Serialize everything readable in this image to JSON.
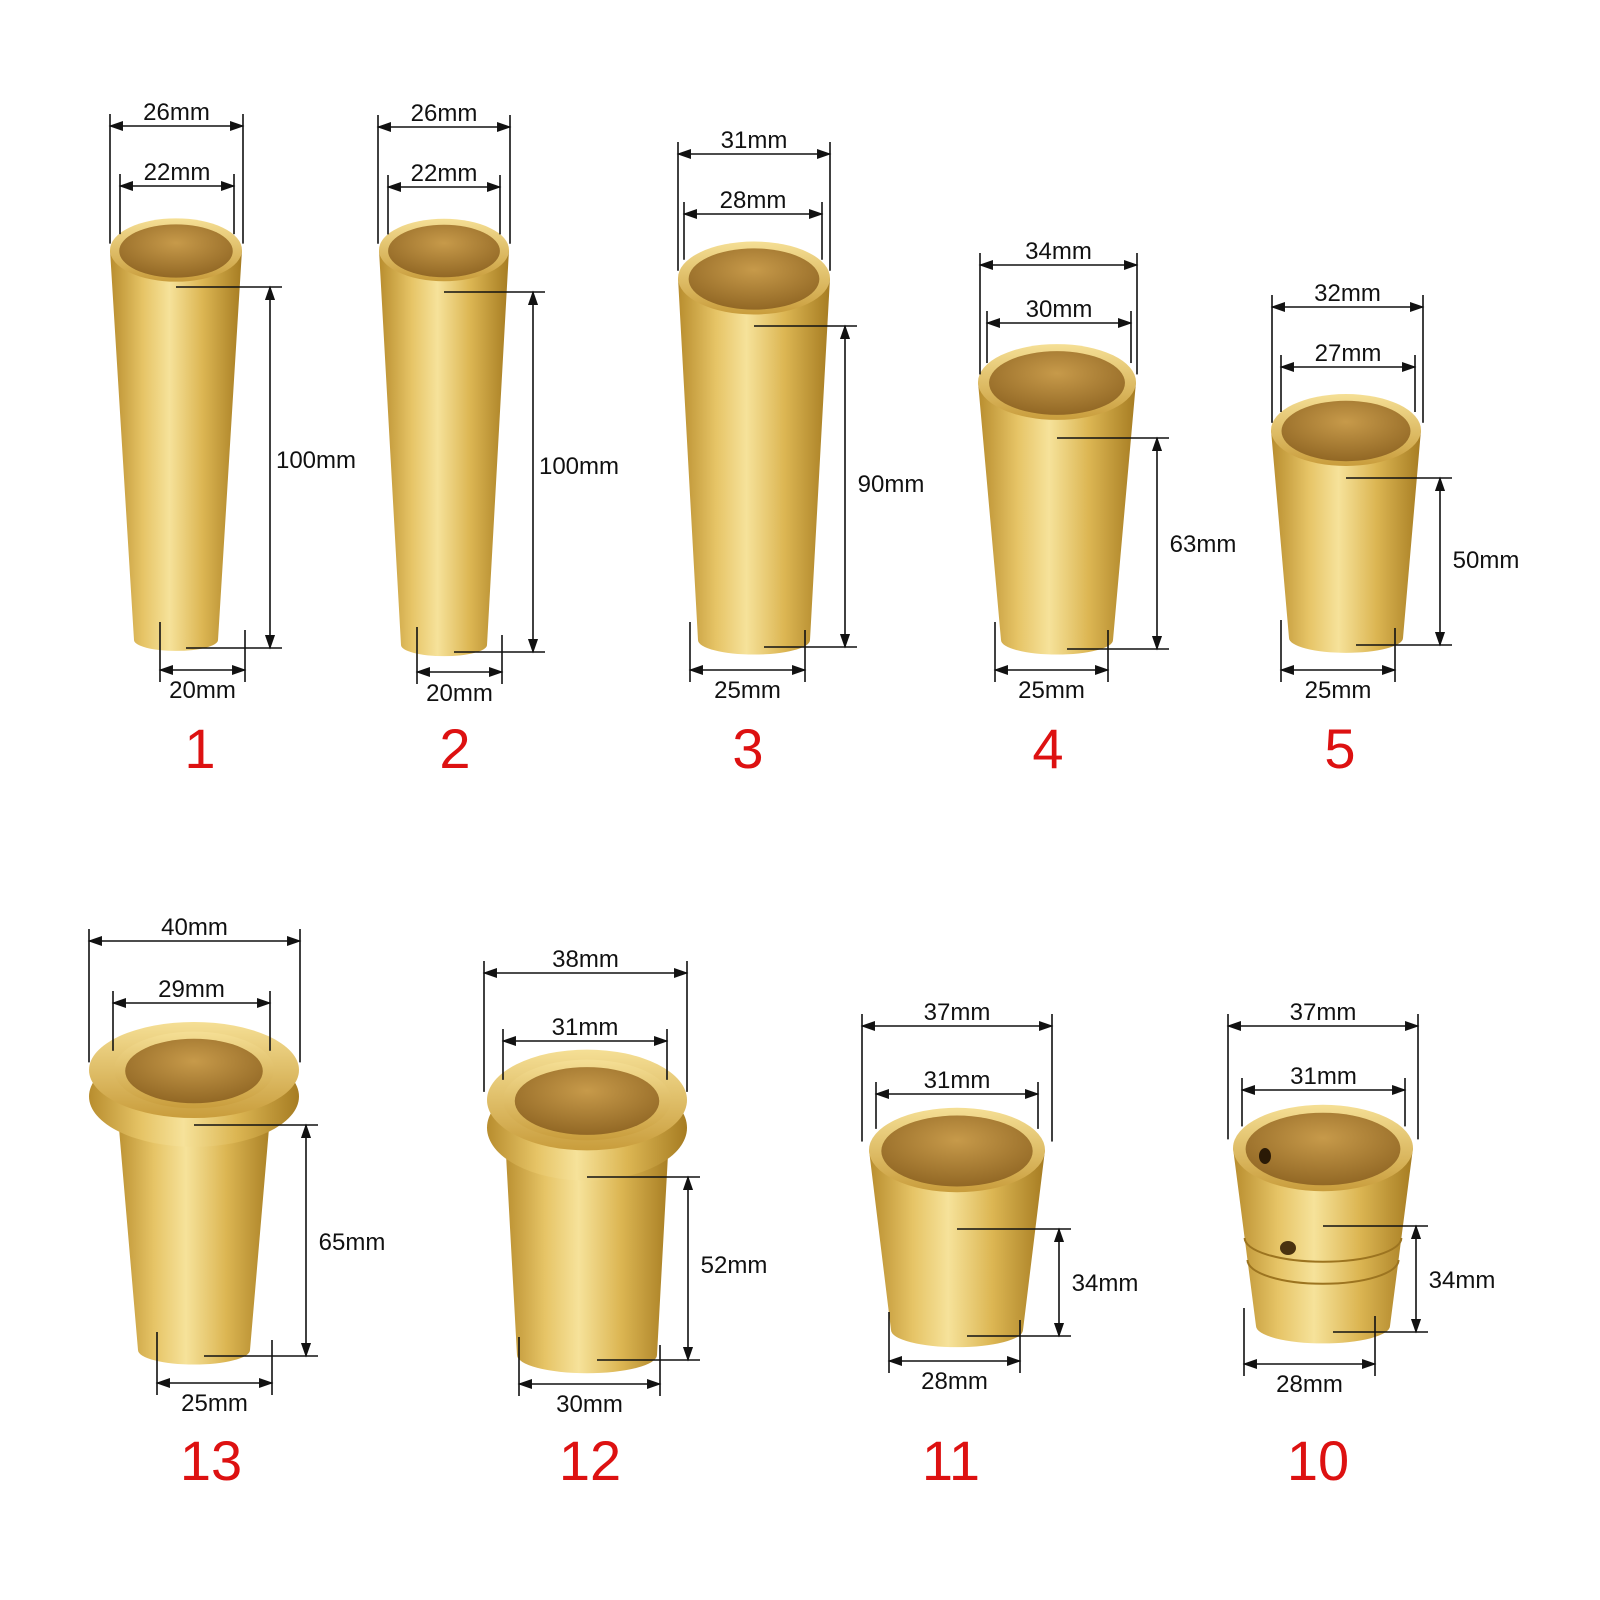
{
  "colors": {
    "brass_light": "#f3dc8a",
    "brass_mid": "#d9b24c",
    "brass_dark": "#a67c22",
    "inner": "#b98a3a",
    "label": "#dd1111",
    "line": "#111111"
  },
  "icons": {
    "fitting": "brass-ferrule-icon",
    "arrow": "dimension-arrow-icon"
  },
  "items": [
    {
      "number": "1",
      "top_outer": "26mm",
      "top_inner": "22mm",
      "height": "100mm",
      "bottom": "20mm"
    },
    {
      "number": "2",
      "top_outer": "26mm",
      "top_inner": "22mm",
      "height": "100mm",
      "bottom": "20mm"
    },
    {
      "number": "3",
      "top_outer": "31mm",
      "top_inner": "28mm",
      "height": "90mm",
      "bottom": "25mm"
    },
    {
      "number": "4",
      "top_outer": "34mm",
      "top_inner": "30mm",
      "height": "63mm",
      "bottom": "25mm"
    },
    {
      "number": "5",
      "top_outer": "32mm",
      "top_inner": "27mm",
      "height": "50mm",
      "bottom": "25mm"
    },
    {
      "number": "13",
      "top_outer": "40mm",
      "top_inner": "29mm",
      "height": "65mm",
      "bottom": "25mm"
    },
    {
      "number": "12",
      "top_outer": "38mm",
      "top_inner": "31mm",
      "height": "52mm",
      "bottom": "30mm"
    },
    {
      "number": "11",
      "top_outer": "37mm",
      "top_inner": "31mm",
      "height": "34mm",
      "bottom": "28mm"
    },
    {
      "number": "10",
      "top_outer": "37mm",
      "top_inner": "31mm",
      "height": "34mm",
      "bottom": "28mm"
    }
  ]
}
